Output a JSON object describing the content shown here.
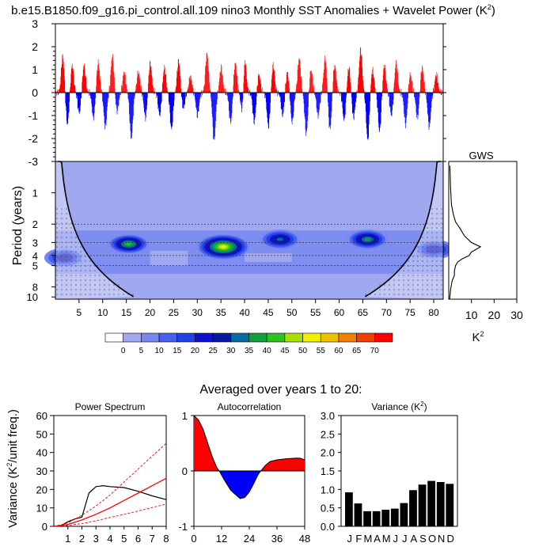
{
  "title": "b.e15.B1850.f09_g16.pi_control.all.109 nino3 Monthly SST Anomalies + Wavelet Power (K",
  "title_sup": "2",
  "title_end": ")",
  "subtitle": "Averaged over years 1 to 20:",
  "colors": {
    "positive": "#ff0000",
    "negative": "#0000ff",
    "wavelet_bg": "#a0a8f0",
    "text": "#000000"
  },
  "chart_data": [
    {
      "id": "sst_anomalies",
      "type": "bar",
      "ylim": [
        -3,
        3
      ],
      "yticks": [
        3,
        2,
        1,
        0,
        -1,
        -2,
        -3
      ],
      "xlim": [
        0,
        82
      ],
      "series_note_values": "monthly values; approx 984 months",
      "peaks_positive": [
        [
          1.5,
          1.6
        ],
        [
          3.5,
          1.2
        ],
        [
          6,
          1.2
        ],
        [
          9,
          1.3
        ],
        [
          12,
          1.6
        ],
        [
          14.5,
          0.9
        ],
        [
          17.5,
          0.9
        ],
        [
          20,
          1.3
        ],
        [
          23,
          1.1
        ],
        [
          26,
          1.4
        ],
        [
          28.5,
          0.7
        ],
        [
          32,
          1.7
        ],
        [
          35,
          1.1
        ],
        [
          38,
          1.3
        ],
        [
          40,
          1.6
        ],
        [
          43,
          0.8
        ],
        [
          46,
          1.2
        ],
        [
          49,
          0.9
        ],
        [
          51.5,
          1.5
        ],
        [
          54,
          1.0
        ],
        [
          57,
          1.5
        ],
        [
          59,
          1.2
        ],
        [
          62,
          1.1
        ],
        [
          64.5,
          1.9
        ],
        [
          67,
          1.0
        ],
        [
          69.5,
          1.2
        ],
        [
          72,
          1.3
        ],
        [
          75,
          0.8
        ],
        [
          77.5,
          1.1
        ],
        [
          80.5,
          0.8
        ]
      ],
      "peaks_negative": [
        [
          2.5,
          -1.4
        ],
        [
          5,
          -0.9
        ],
        [
          8,
          -1.1
        ],
        [
          10.5,
          -1.5
        ],
        [
          13,
          -0.8
        ],
        [
          16,
          -2.0
        ],
        [
          19,
          -1.1
        ],
        [
          22,
          -1.0
        ],
        [
          24.5,
          -1.6
        ],
        [
          27,
          -0.7
        ],
        [
          30,
          -1.0
        ],
        [
          33.5,
          -2.1
        ],
        [
          37,
          -1.3
        ],
        [
          39.5,
          -1.0
        ],
        [
          42,
          -1.3
        ],
        [
          45,
          -1.5
        ],
        [
          48,
          -1.0
        ],
        [
          50,
          -1.3
        ],
        [
          53,
          -1.8
        ],
        [
          55.5,
          -1.0
        ],
        [
          58,
          -1.6
        ],
        [
          61,
          -1.2
        ],
        [
          63,
          -1.1
        ],
        [
          66,
          -2.1
        ],
        [
          68.5,
          -1.7
        ],
        [
          71,
          -1.0
        ],
        [
          74,
          -1.4
        ],
        [
          76.5,
          -1.1
        ],
        [
          79,
          -1.5
        ]
      ]
    },
    {
      "id": "wavelet_power",
      "type": "heatmap",
      "ylabel": "Period (years)",
      "ytick_labels": [
        "1",
        "2",
        "3",
        "4",
        "5",
        "8",
        "10"
      ],
      "yticks": [
        1,
        2,
        3,
        4,
        5,
        8,
        10
      ],
      "xticks": [
        5,
        10,
        15,
        20,
        25,
        30,
        35,
        40,
        45,
        50,
        55,
        60,
        65,
        70,
        75,
        80
      ],
      "xlim": [
        0,
        82
      ],
      "ylim": [
        0.5,
        10.5
      ],
      "y_scale": "log",
      "hotspots": [
        {
          "x": 15.5,
          "period": 3.1,
          "power": 40
        },
        {
          "x": 35.5,
          "period": 3.3,
          "power": 50
        },
        {
          "x": 47.5,
          "period": 2.8,
          "power": 30
        },
        {
          "x": 66,
          "period": 2.8,
          "power": 35
        },
        {
          "x": 2,
          "period": 4.2,
          "power": 25
        },
        {
          "x": 80,
          "period": 3.5,
          "power": 25
        }
      ]
    },
    {
      "id": "colorbar",
      "type": "heatmap",
      "labels": [
        "0",
        "5",
        "10",
        "15",
        "20",
        "25",
        "30",
        "35",
        "40",
        "45",
        "50",
        "55",
        "60",
        "65",
        "70"
      ],
      "colors": [
        "#ffffff",
        "#a0a8f0",
        "#7888f0",
        "#4860f0",
        "#2040e8",
        "#1010d0",
        "#0818a0",
        "#086ca0",
        "#10a040",
        "#30c020",
        "#a8e000",
        "#f0f000",
        "#f0c000",
        "#f08000",
        "#f04000",
        "#ff0000"
      ]
    },
    {
      "id": "gws",
      "type": "line",
      "title": "GWS",
      "xlabel": "K",
      "xlabel_sup": "2",
      "xticks": [
        10,
        20,
        30
      ],
      "xtick_labels": [
        "10",
        "20",
        "30"
      ],
      "xlim": [
        0,
        30
      ],
      "points": [
        [
          0.5,
          0.55
        ],
        [
          0.8,
          0.9
        ],
        [
          1.2,
          1.3
        ],
        [
          2,
          1.6
        ],
        [
          3,
          1.9
        ],
        [
          5,
          2.2
        ],
        [
          6,
          2.4
        ],
        [
          7,
          2.6
        ],
        [
          10,
          3.0
        ],
        [
          14,
          3.3
        ],
        [
          10,
          3.7
        ],
        [
          9,
          4.0
        ],
        [
          6,
          4.3
        ],
        [
          4,
          4.6
        ],
        [
          3,
          5.0
        ],
        [
          2.5,
          5.6
        ],
        [
          2.5,
          6.2
        ],
        [
          1.5,
          7
        ],
        [
          0.8,
          8.5
        ],
        [
          0.4,
          10.5
        ]
      ]
    },
    {
      "id": "power_spectrum",
      "type": "line",
      "title": "Power Spectrum",
      "ylabel": "Variance (K",
      "ylabel_sup": "2",
      "ylabel_end": "/unit freq.)",
      "ylim": [
        0,
        60
      ],
      "yticks": [
        0,
        10,
        20,
        30,
        40,
        50,
        60
      ],
      "xlim": [
        0,
        8
      ],
      "xticks": [
        1,
        2,
        3,
        4,
        5,
        6,
        7,
        8
      ],
      "series": [
        {
          "style": "black",
          "points": [
            [
              0,
              0
            ],
            [
              0.5,
              0.3
            ],
            [
              1,
              2.5
            ],
            [
              1.5,
              4
            ],
            [
              2,
              5
            ],
            [
              2.5,
              18
            ],
            [
              3,
              21.5
            ],
            [
              3.5,
              22
            ],
            [
              4,
              21.5
            ],
            [
              5,
              21
            ],
            [
              6,
              19
            ],
            [
              7,
              16.5
            ],
            [
              8,
              14.5
            ]
          ]
        },
        {
          "style": "red-solid",
          "points": [
            [
              0,
              0
            ],
            [
              1,
              1
            ],
            [
              2,
              3.5
            ],
            [
              3,
              6.5
            ],
            [
              4,
              10
            ],
            [
              5,
              14
            ],
            [
              6,
              18
            ],
            [
              7,
              22
            ],
            [
              8,
              26
            ]
          ]
        },
        {
          "style": "red-dashed",
          "points": [
            [
              0,
              0
            ],
            [
              1,
              1.8
            ],
            [
              2,
              6
            ],
            [
              3,
              11
            ],
            [
              4,
              17
            ],
            [
              5,
              24
            ],
            [
              6,
              31
            ],
            [
              7,
              38
            ],
            [
              8,
              45
            ]
          ]
        },
        {
          "style": "red-dashed",
          "points": [
            [
              0,
              0
            ],
            [
              1,
              0.5
            ],
            [
              2,
              1.5
            ],
            [
              3,
              3
            ],
            [
              4,
              4.8
            ],
            [
              5,
              6.5
            ],
            [
              6,
              8.3
            ],
            [
              7,
              10.2
            ],
            [
              8,
              12
            ]
          ]
        }
      ]
    },
    {
      "id": "autocorrelation",
      "type": "area",
      "title": "Autocorrelation",
      "ylim": [
        -1,
        1
      ],
      "ytick_labels": [
        "1",
        "0",
        "-1"
      ],
      "xlim": [
        0,
        48
      ],
      "xticks": [
        0,
        12,
        24,
        36,
        48
      ],
      "points": [
        [
          0,
          1
        ],
        [
          2,
          0.92
        ],
        [
          4,
          0.75
        ],
        [
          6,
          0.5
        ],
        [
          8,
          0.25
        ],
        [
          10,
          0.05
        ],
        [
          11,
          0
        ],
        [
          13,
          -0.15
        ],
        [
          16,
          -0.35
        ],
        [
          20,
          -0.5
        ],
        [
          22,
          -0.48
        ],
        [
          24,
          -0.38
        ],
        [
          26,
          -0.22
        ],
        [
          28,
          -0.05
        ],
        [
          29,
          0
        ],
        [
          31,
          0.1
        ],
        [
          33,
          0.17
        ],
        [
          36,
          0.2
        ],
        [
          40,
          0.22
        ],
        [
          44,
          0.23
        ],
        [
          46,
          0.23
        ],
        [
          48,
          0.2
        ]
      ]
    },
    {
      "id": "variance",
      "type": "bar",
      "title": "Variance (K",
      "title_sup": "2",
      "title_end": ")",
      "ylim": [
        0,
        3
      ],
      "yticks": [
        "0.0",
        "0.5",
        "1.0",
        "1.5",
        "2.0",
        "2.5",
        "3.0"
      ],
      "categories": [
        "J",
        "F",
        "M",
        "A",
        "M",
        "J",
        "J",
        "A",
        "S",
        "O",
        "N",
        "D"
      ],
      "values": [
        0.92,
        0.62,
        0.41,
        0.41,
        0.45,
        0.48,
        0.63,
        0.98,
        1.13,
        1.23,
        1.2,
        1.15
      ]
    }
  ]
}
